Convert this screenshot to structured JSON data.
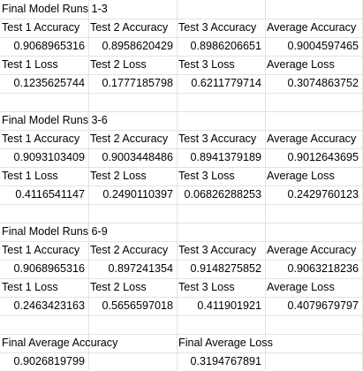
{
  "sections": [
    {
      "title": "Final Model Runs 1-3",
      "accuracy_headers": [
        "Test 1 Accuracy",
        "Test 2 Accuracy",
        "Test 3 Accuracy",
        "Average Accuracy"
      ],
      "accuracy_values": [
        "0.9068965316",
        "0.8958620429",
        "0.8986206651",
        "0.9004597465"
      ],
      "loss_headers": [
        "Test 1 Loss",
        "Test 2 Loss",
        "Test 3 Loss",
        "Average Loss"
      ],
      "loss_values": [
        "0.1235625744",
        "0.1777185798",
        "0.6211779714",
        "0.3074863752"
      ]
    },
    {
      "title": "Final Model Runs 3-6",
      "accuracy_headers": [
        "Test 1 Accuracy",
        "Test 2 Accuracy",
        "Test 3 Accuracy",
        "Average Accuracy"
      ],
      "accuracy_values": [
        "0.9093103409",
        "0.9003448486",
        "0.8941379189",
        "0.9012643695"
      ],
      "loss_headers": [
        "Test 1 Loss",
        "Test 2 Loss",
        "Test 3 Loss",
        "Average Loss"
      ],
      "loss_values": [
        "0.4116541147",
        "0.2490110397",
        "0.06826288253",
        "0.2429760123"
      ]
    },
    {
      "title": "Final Model Runs 6-9",
      "accuracy_headers": [
        "Test 1 Accuracy",
        "Test 2 Accuracy",
        "Test 3 Accuracy",
        "Average Accuracy"
      ],
      "accuracy_values": [
        "0.9068965316",
        "0.897241354",
        "0.9148275852",
        "0.9063218236"
      ],
      "loss_headers": [
        "Test 1 Loss",
        "Test 2 Loss",
        "Test 3 Loss",
        "Average Loss"
      ],
      "loss_values": [
        "0.2463423163",
        "0.5656597018",
        "0.411901921",
        "0.4079679797"
      ]
    }
  ],
  "final": {
    "accuracy_label": "Final Average Accuracy",
    "accuracy_value": "0.9026819799",
    "loss_label": "Final Average Loss",
    "loss_value": "0.3194767891"
  }
}
